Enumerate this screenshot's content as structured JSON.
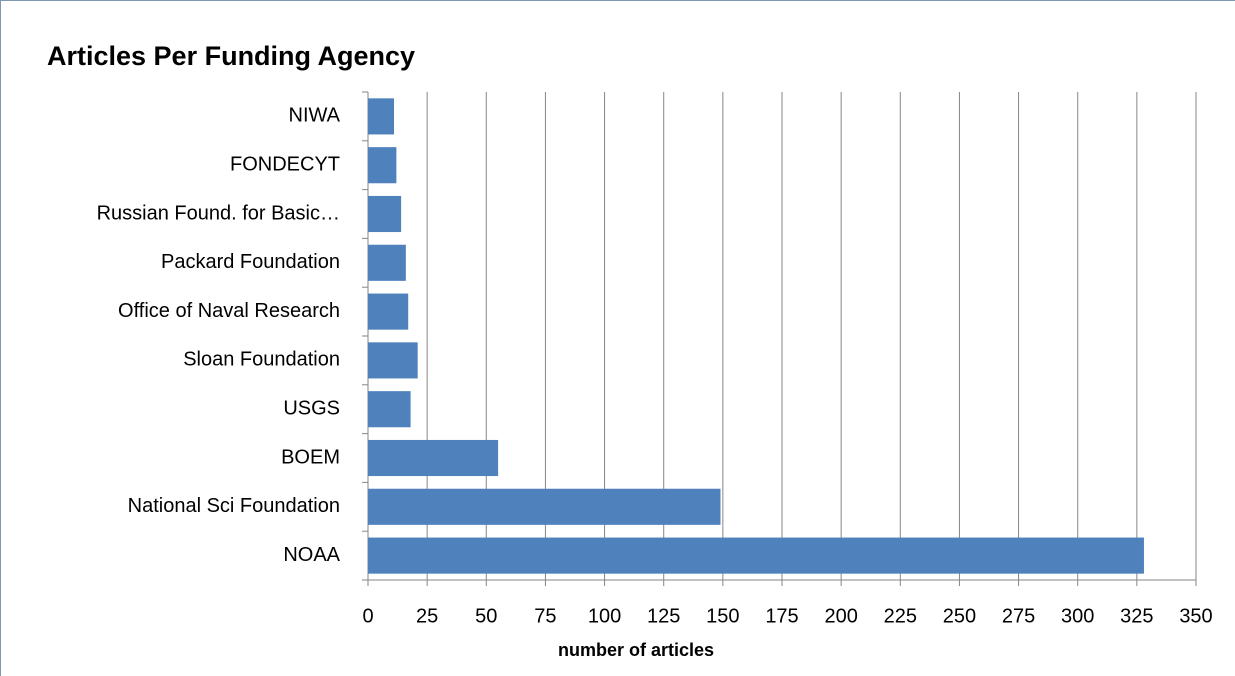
{
  "chart_data": {
    "type": "bar",
    "title": "Articles Per Funding Agency",
    "x_label": "number of articles",
    "categories": [
      "NIWA",
      "FONDECYT",
      "Russian Found. for Basic…",
      "Packard Foundation",
      "Office of Naval Research",
      "Sloan Foundation",
      "USGS",
      "BOEM",
      "National Sci Foundation",
      "NOAA"
    ],
    "values": [
      11,
      12,
      14,
      16,
      17,
      21,
      18,
      55,
      149,
      328
    ],
    "color": "#4f81bd",
    "xlim": [
      0,
      350
    ],
    "xticks": [
      0,
      25,
      50,
      75,
      100,
      125,
      150,
      175,
      200,
      225,
      250,
      275,
      300,
      325,
      350
    ],
    "grid": true
  }
}
